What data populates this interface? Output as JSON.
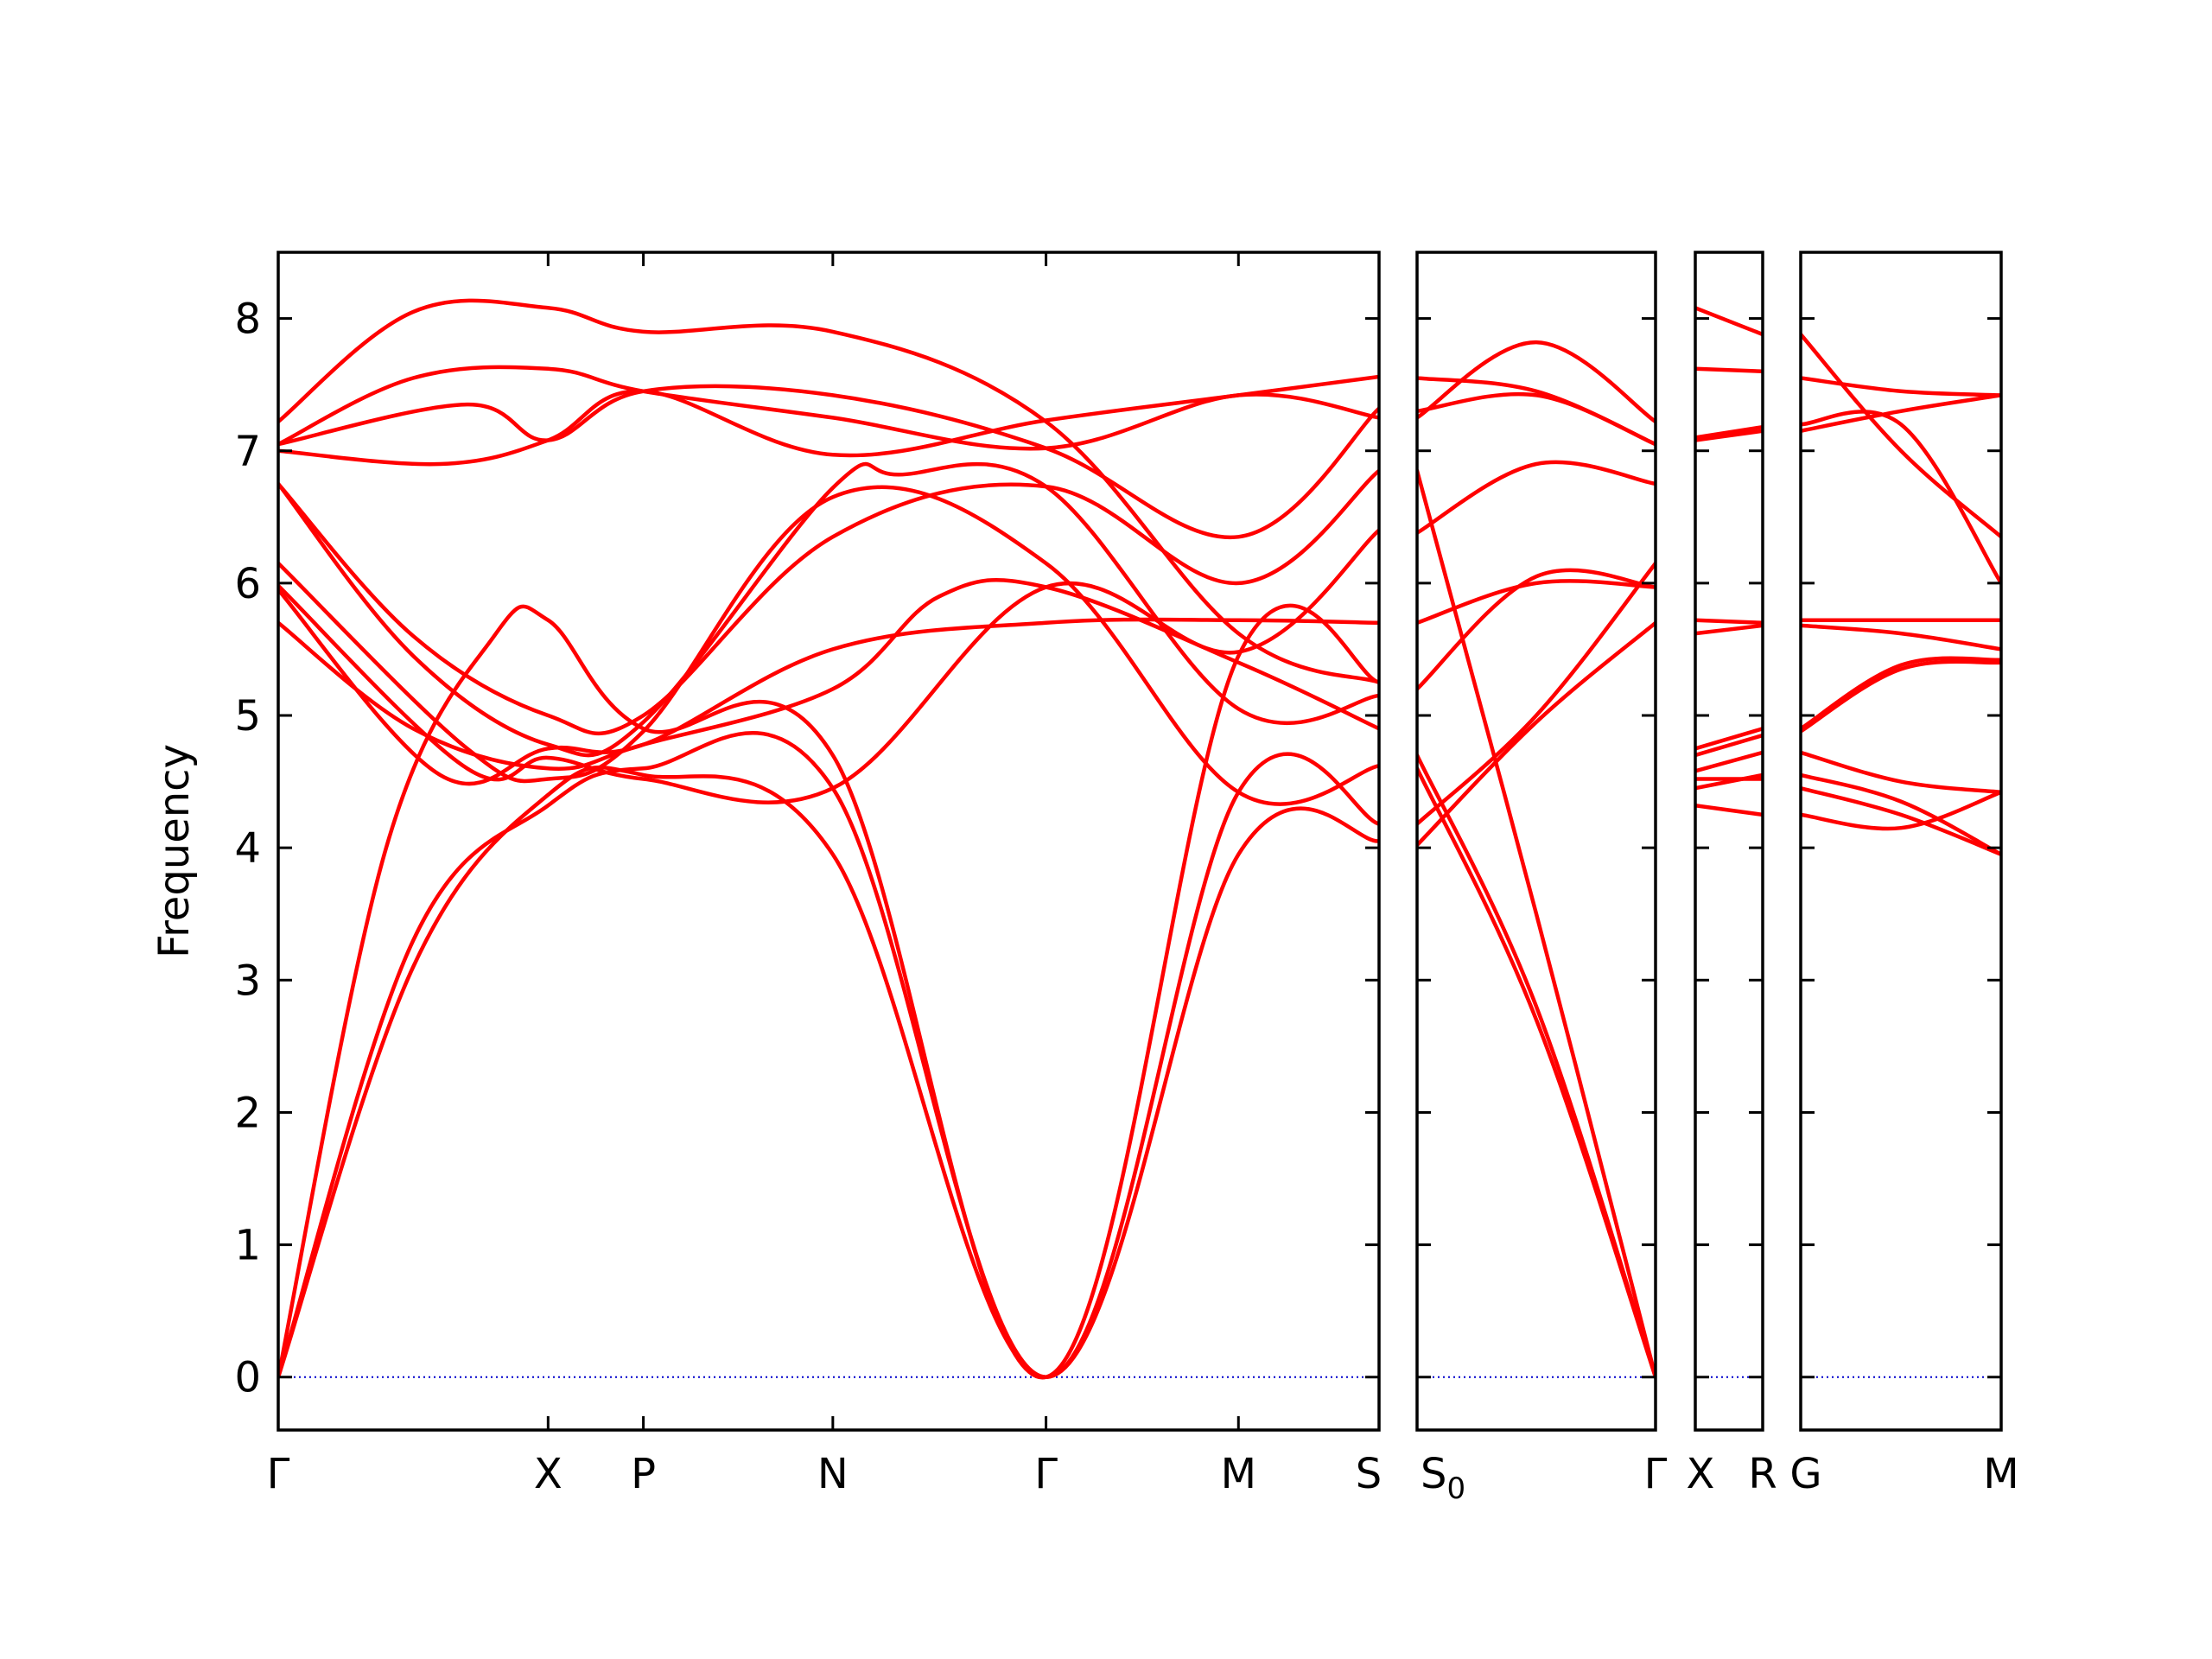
{
  "chart_data": {
    "type": "line",
    "title": "",
    "xlabel": "",
    "ylabel": "Frequency",
    "ylim": [
      -0.4,
      8.5
    ],
    "yticks": [
      0,
      1,
      2,
      3,
      4,
      5,
      6,
      7,
      8
    ],
    "grid": false,
    "legend": "none",
    "colors": {
      "bands": "#ff0000",
      "zero_line": "#0000cc",
      "axes": "#000000"
    },
    "panels": [
      {
        "labels": [
          {
            "t": "Γ",
            "x": 0.0
          },
          {
            "t": "X",
            "x": 1.0
          },
          {
            "t": "P",
            "x": 1.353
          },
          {
            "t": "N",
            "x": 2.055
          },
          {
            "t": "Γ",
            "x": 2.845
          },
          {
            "t": "M",
            "x": 3.558
          },
          {
            "t": "S",
            "x": 4.079
          }
        ],
        "bands": [
          [
            [
              0,
              0
            ],
            [
              0.5,
              3.1
            ],
            [
              1,
              4.4
            ],
            [
              1.353,
              4.55
            ],
            [
              2.055,
              3.95
            ],
            [
              2.845,
              0
            ],
            [
              3.558,
              3.95
            ],
            [
              4.079,
              4.05
            ]
          ],
          [
            [
              0,
              0
            ],
            [
              0.5,
              3.3
            ],
            [
              1,
              4.32
            ],
            [
              1.353,
              4.6
            ],
            [
              2.055,
              4.45
            ],
            [
              2.845,
              0
            ],
            [
              3.558,
              4.42
            ],
            [
              4.079,
              4.18
            ]
          ],
          [
            [
              0,
              0
            ],
            [
              0.4,
              4.0
            ],
            [
              0.8,
              5.6
            ],
            [
              1,
              5.72
            ],
            [
              1.353,
              4.9
            ],
            [
              2.055,
              4.7
            ],
            [
              2.845,
              0
            ],
            [
              3.558,
              5.45
            ],
            [
              4.079,
              5.25
            ]
          ],
          [
            [
              0,
              5.7
            ],
            [
              0.5,
              4.9
            ],
            [
              1,
              4.6
            ],
            [
              1.353,
              4.78
            ],
            [
              2.055,
              5.2
            ],
            [
              2.45,
              5.9
            ],
            [
              2.845,
              5.97
            ],
            [
              3.558,
              5.4
            ],
            [
              4.079,
              4.9
            ]
          ],
          [
            [
              0,
              5.95
            ],
            [
              0.6,
              4.55
            ],
            [
              1,
              4.75
            ],
            [
              1.353,
              4.78
            ],
            [
              2.055,
              5.5
            ],
            [
              2.845,
              5.7
            ],
            [
              3.558,
              5.72
            ],
            [
              4.079,
              5.7
            ]
          ],
          [
            [
              0,
              5.98
            ],
            [
              0.7,
              4.6
            ],
            [
              1,
              4.68
            ],
            [
              1.353,
              4.52
            ],
            [
              2.055,
              4.45
            ],
            [
              2.845,
              5.97
            ],
            [
              3.558,
              5.48
            ],
            [
              4.079,
              6.4
            ]
          ],
          [
            [
              0,
              6.15
            ],
            [
              0.7,
              4.75
            ],
            [
              1,
              4.52
            ],
            [
              1.353,
              4.88
            ],
            [
              2.055,
              6.65
            ],
            [
              2.845,
              6.15
            ],
            [
              3.558,
              4.42
            ],
            [
              4.079,
              4.62
            ]
          ],
          [
            [
              0,
              6.75
            ],
            [
              0.5,
              5.6
            ],
            [
              1,
              5.0
            ],
            [
              1.353,
              5.0
            ],
            [
              2.055,
              6.35
            ],
            [
              2.845,
              6.73
            ],
            [
              3.558,
              6.0
            ],
            [
              4.079,
              6.85
            ]
          ],
          [
            [
              0,
              6.75
            ],
            [
              0.5,
              5.45
            ],
            [
              1,
              4.78
            ],
            [
              1.353,
              4.95
            ],
            [
              2.055,
              6.72
            ],
            [
              2.3,
              6.82
            ],
            [
              2.845,
              6.73
            ],
            [
              3.558,
              5.05
            ],
            [
              4.079,
              5.15
            ]
          ],
          [
            [
              0,
              7.0
            ],
            [
              0.6,
              6.9
            ],
            [
              1,
              7.08
            ],
            [
              1.353,
              7.45
            ],
            [
              2.055,
              6.97
            ],
            [
              2.845,
              7.23
            ],
            [
              3.558,
              7.42
            ],
            [
              4.079,
              7.56
            ]
          ],
          [
            [
              0,
              7.05
            ],
            [
              0.7,
              7.35
            ],
            [
              1,
              7.08
            ],
            [
              1.353,
              7.45
            ],
            [
              2.055,
              7.42
            ],
            [
              2.845,
              7.02
            ],
            [
              3.558,
              6.35
            ],
            [
              4.079,
              7.32
            ]
          ],
          [
            [
              0,
              7.05
            ],
            [
              0.5,
              7.55
            ],
            [
              1,
              7.62
            ],
            [
              1.353,
              7.45
            ],
            [
              2.055,
              7.25
            ],
            [
              2.845,
              7.02
            ],
            [
              3.558,
              7.42
            ],
            [
              4.079,
              7.25
            ]
          ],
          [
            [
              0,
              7.22
            ],
            [
              0.5,
              8.05
            ],
            [
              1,
              8.08
            ],
            [
              1.353,
              7.9
            ],
            [
              2.055,
              7.9
            ],
            [
              2.845,
              7.22
            ],
            [
              3.558,
              5.62
            ],
            [
              4.079,
              5.25
            ]
          ]
        ]
      },
      {
        "labels": [
          {
            "t": "S",
            "sub": "0",
            "x": 0.0
          },
          {
            "t": "Γ",
            "x": 1.0
          }
        ],
        "bands": [
          [
            [
              0,
              4.7
            ],
            [
              0.5,
              2.8
            ],
            [
              1,
              0
            ]
          ],
          [
            [
              0,
              4.6
            ],
            [
              0.5,
              2.7
            ],
            [
              1,
              0
            ]
          ],
          [
            [
              0,
              6.85
            ],
            [
              0.5,
              3.5
            ],
            [
              1,
              0
            ]
          ],
          [
            [
              0,
              4.02
            ],
            [
              0.5,
              4.95
            ],
            [
              1,
              5.7
            ]
          ],
          [
            [
              0,
              4.18
            ],
            [
              0.5,
              5.0
            ],
            [
              1,
              6.15
            ]
          ],
          [
            [
              0,
              5.2
            ],
            [
              0.5,
              6.05
            ],
            [
              1,
              5.97
            ]
          ],
          [
            [
              0,
              5.7
            ],
            [
              0.5,
              6.0
            ],
            [
              1,
              5.97
            ]
          ],
          [
            [
              0,
              6.38
            ],
            [
              0.5,
              6.9
            ],
            [
              1,
              6.75
            ]
          ],
          [
            [
              0,
              7.3
            ],
            [
              0.5,
              7.42
            ],
            [
              1,
              7.05
            ]
          ],
          [
            [
              0,
              7.55
            ],
            [
              0.5,
              7.45
            ],
            [
              1,
              7.05
            ]
          ],
          [
            [
              0,
              7.25
            ],
            [
              0.5,
              7.82
            ],
            [
              1,
              7.22
            ]
          ]
        ]
      },
      {
        "labels": [
          {
            "t": "X",
            "x": 0.0
          },
          {
            "t": "R",
            "x": 1.0
          }
        ],
        "bands": [
          [
            [
              0,
              4.32
            ],
            [
              1,
              4.25
            ]
          ],
          [
            [
              0,
              4.45
            ],
            [
              1,
              4.55
            ]
          ],
          [
            [
              0,
              4.52
            ],
            [
              1,
              4.52
            ]
          ],
          [
            [
              0,
              4.58
            ],
            [
              1,
              4.72
            ]
          ],
          [
            [
              0,
              4.7
            ],
            [
              1,
              4.85
            ]
          ],
          [
            [
              0,
              4.75
            ],
            [
              1,
              4.9
            ]
          ],
          [
            [
              0,
              5.62
            ],
            [
              1,
              5.68
            ]
          ],
          [
            [
              0,
              5.72
            ],
            [
              1,
              5.7
            ]
          ],
          [
            [
              0,
              7.08
            ],
            [
              1,
              7.15
            ]
          ],
          [
            [
              0,
              7.1
            ],
            [
              1,
              7.18
            ]
          ],
          [
            [
              0,
              7.62
            ],
            [
              1,
              7.6
            ]
          ],
          [
            [
              0,
              8.08
            ],
            [
              1,
              7.88
            ]
          ]
        ]
      },
      {
        "labels": [
          {
            "t": "G",
            "x": 0.0
          },
          {
            "t": "M",
            "x": 1.0
          }
        ],
        "bands": [
          [
            [
              0,
              4.25
            ],
            [
              0.5,
              4.15
            ],
            [
              1,
              4.42
            ]
          ],
          [
            [
              0,
              4.45
            ],
            [
              0.5,
              4.25
            ],
            [
              1,
              3.95
            ]
          ],
          [
            [
              0,
              4.55
            ],
            [
              0.5,
              4.35
            ],
            [
              1,
              3.95
            ]
          ],
          [
            [
              0,
              4.72
            ],
            [
              0.5,
              4.5
            ],
            [
              1,
              4.42
            ]
          ],
          [
            [
              0,
              4.88
            ],
            [
              0.5,
              5.35
            ],
            [
              1,
              5.4
            ]
          ],
          [
            [
              0,
              4.9
            ],
            [
              0.5,
              5.38
            ],
            [
              1,
              5.42
            ]
          ],
          [
            [
              0,
              5.68
            ],
            [
              0.5,
              5.62
            ],
            [
              1,
              5.5
            ]
          ],
          [
            [
              0,
              5.72
            ],
            [
              0.5,
              5.72
            ],
            [
              1,
              5.72
            ]
          ],
          [
            [
              0,
              7.15
            ],
            [
              0.5,
              7.3
            ],
            [
              1,
              7.42
            ]
          ],
          [
            [
              0,
              7.2
            ],
            [
              0.5,
              7.2
            ],
            [
              1,
              6.0
            ]
          ],
          [
            [
              0,
              7.55
            ],
            [
              0.5,
              7.45
            ],
            [
              1,
              7.42
            ]
          ],
          [
            [
              0,
              7.88
            ],
            [
              0.5,
              7.0
            ],
            [
              1,
              6.35
            ]
          ]
        ]
      }
    ]
  }
}
